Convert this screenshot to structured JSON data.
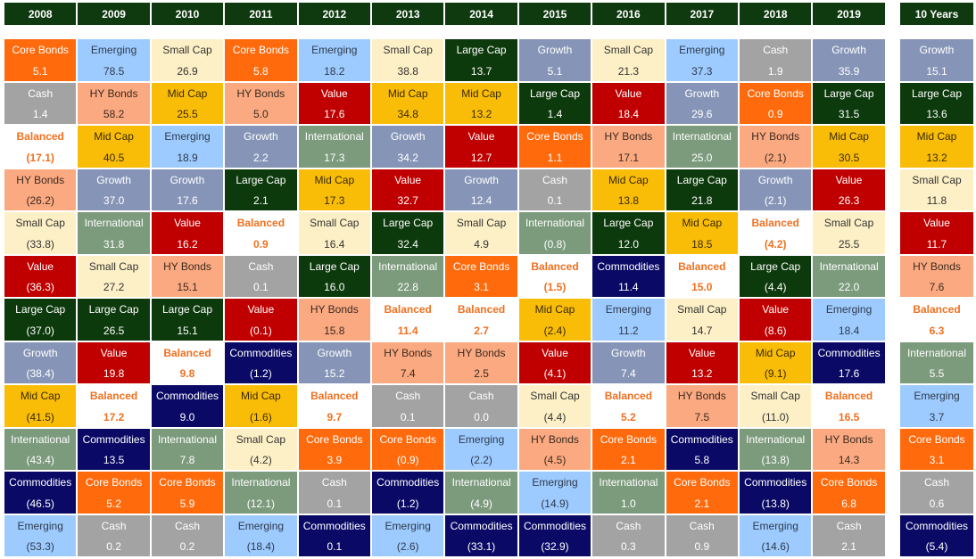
{
  "chart_data": {
    "type": "table",
    "columns": [
      "2008",
      "2009",
      "2010",
      "2011",
      "2012",
      "2013",
      "2014",
      "2015",
      "2016",
      "2017",
      "2018",
      "2019"
    ],
    "summary_column": "10 Years",
    "asset_colors": {
      "Core Bonds": {
        "bg": "#ff6a0d",
        "fg": "#ffffff"
      },
      "Emerging": {
        "bg": "#9dcbff",
        "fg": "#2f3a4a"
      },
      "Small Cap": {
        "bg": "#fdf0c6",
        "fg": "#333333"
      },
      "Large Cap": {
        "bg": "#0d3a0d",
        "fg": "#ffffff"
      },
      "Growth": {
        "bg": "#8695b7",
        "fg": "#ffffff"
      },
      "Cash": {
        "bg": "#a3a3a3",
        "fg": "#ffffff"
      },
      "HY Bonds": {
        "bg": "#fba980",
        "fg": "#3a2a20"
      },
      "Mid Cap": {
        "bg": "#f9bd08",
        "fg": "#3a2a00"
      },
      "Value": {
        "bg": "#c00000",
        "fg": "#ffffff"
      },
      "International": {
        "bg": "#7c9a7c",
        "fg": "#ffffff"
      },
      "Balanced": {
        "bg": "#ffffff",
        "fg": "#f07020"
      },
      "Commodities": {
        "bg": "#0a0a66",
        "fg": "#ffffff"
      }
    },
    "years": [
      {
        "year": "2008",
        "cells": [
          {
            "asset": "Core Bonds",
            "value": "5.1"
          },
          {
            "asset": "Cash",
            "value": "1.4"
          },
          {
            "asset": "Balanced",
            "value": "(17.1)"
          },
          {
            "asset": "HY Bonds",
            "value": "(26.2)"
          },
          {
            "asset": "Small Cap",
            "value": "(33.8)"
          },
          {
            "asset": "Value",
            "value": "(36.3)"
          },
          {
            "asset": "Large Cap",
            "value": "(37.0)"
          },
          {
            "asset": "Growth",
            "value": "(38.4)"
          },
          {
            "asset": "Mid Cap",
            "value": "(41.5)"
          },
          {
            "asset": "International",
            "value": "(43.4)"
          },
          {
            "asset": "Commodities",
            "value": "(46.5)"
          },
          {
            "asset": "Emerging",
            "value": "(53.3)"
          }
        ]
      },
      {
        "year": "2009",
        "cells": [
          {
            "asset": "Emerging",
            "value": "78.5"
          },
          {
            "asset": "HY Bonds",
            "value": "58.2"
          },
          {
            "asset": "Mid Cap",
            "value": "40.5"
          },
          {
            "asset": "Growth",
            "value": "37.0"
          },
          {
            "asset": "International",
            "value": "31.8"
          },
          {
            "asset": "Small Cap",
            "value": "27.2"
          },
          {
            "asset": "Large Cap",
            "value": "26.5"
          },
          {
            "asset": "Value",
            "value": "19.8"
          },
          {
            "asset": "Balanced",
            "value": "17.2"
          },
          {
            "asset": "Commodities",
            "value": "13.5"
          },
          {
            "asset": "Core Bonds",
            "value": "5.2"
          },
          {
            "asset": "Cash",
            "value": "0.2"
          }
        ]
      },
      {
        "year": "2010",
        "cells": [
          {
            "asset": "Small Cap",
            "value": "26.9"
          },
          {
            "asset": "Mid Cap",
            "value": "25.5"
          },
          {
            "asset": "Emerging",
            "value": "18.9"
          },
          {
            "asset": "Growth",
            "value": "17.6"
          },
          {
            "asset": "Value",
            "value": "16.2"
          },
          {
            "asset": "HY Bonds",
            "value": "15.1"
          },
          {
            "asset": "Large Cap",
            "value": "15.1"
          },
          {
            "asset": "Balanced",
            "value": "9.8"
          },
          {
            "asset": "Commodities",
            "value": "9.0"
          },
          {
            "asset": "International",
            "value": "7.8"
          },
          {
            "asset": "Core Bonds",
            "value": "5.9"
          },
          {
            "asset": "Cash",
            "value": "0.2"
          }
        ]
      },
      {
        "year": "2011",
        "cells": [
          {
            "asset": "Core Bonds",
            "value": "5.8"
          },
          {
            "asset": "HY Bonds",
            "value": "5.0"
          },
          {
            "asset": "Growth",
            "value": "2.2"
          },
          {
            "asset": "Large Cap",
            "value": "2.1"
          },
          {
            "asset": "Balanced",
            "value": "0.9"
          },
          {
            "asset": "Cash",
            "value": "0.1"
          },
          {
            "asset": "Value",
            "value": "(0.1)"
          },
          {
            "asset": "Commodities",
            "value": "(1.2)"
          },
          {
            "asset": "Mid Cap",
            "value": "(1.6)"
          },
          {
            "asset": "Small Cap",
            "value": "(4.2)"
          },
          {
            "asset": "International",
            "value": "(12.1)"
          },
          {
            "asset": "Emerging",
            "value": "(18.4)"
          }
        ]
      },
      {
        "year": "2012",
        "cells": [
          {
            "asset": "Emerging",
            "value": "18.2"
          },
          {
            "asset": "Value",
            "value": "17.6"
          },
          {
            "asset": "International",
            "value": "17.3"
          },
          {
            "asset": "Mid Cap",
            "value": "17.3"
          },
          {
            "asset": "Small Cap",
            "value": "16.4"
          },
          {
            "asset": "Large Cap",
            "value": "16.0"
          },
          {
            "asset": "HY Bonds",
            "value": "15.8"
          },
          {
            "asset": "Growth",
            "value": "15.2"
          },
          {
            "asset": "Balanced",
            "value": "9.7"
          },
          {
            "asset": "Core Bonds",
            "value": "3.9"
          },
          {
            "asset": "Cash",
            "value": "0.1"
          },
          {
            "asset": "Commodities",
            "value": "0.1"
          }
        ]
      },
      {
        "year": "2013",
        "cells": [
          {
            "asset": "Small Cap",
            "value": "38.8"
          },
          {
            "asset": "Mid Cap",
            "value": "34.8"
          },
          {
            "asset": "Growth",
            "value": "34.2"
          },
          {
            "asset": "Value",
            "value": "32.7"
          },
          {
            "asset": "Large Cap",
            "value": "32.4"
          },
          {
            "asset": "International",
            "value": "22.8"
          },
          {
            "asset": "Balanced",
            "value": "11.4"
          },
          {
            "asset": "HY Bonds",
            "value": "7.4"
          },
          {
            "asset": "Cash",
            "value": "0.1"
          },
          {
            "asset": "Core Bonds",
            "value": "(0.9)"
          },
          {
            "asset": "Commodities",
            "value": "(1.2)"
          },
          {
            "asset": "Emerging",
            "value": "(2.6)"
          }
        ]
      },
      {
        "year": "2014",
        "cells": [
          {
            "asset": "Large Cap",
            "value": "13.7"
          },
          {
            "asset": "Mid Cap",
            "value": "13.2"
          },
          {
            "asset": "Value",
            "value": "12.7"
          },
          {
            "asset": "Growth",
            "value": "12.4"
          },
          {
            "asset": "Small Cap",
            "value": "4.9"
          },
          {
            "asset": "Core Bonds",
            "value": "3.1"
          },
          {
            "asset": "Balanced",
            "value": "2.7"
          },
          {
            "asset": "HY Bonds",
            "value": "2.5"
          },
          {
            "asset": "Cash",
            "value": "0.0"
          },
          {
            "asset": "Emerging",
            "value": "(2.2)"
          },
          {
            "asset": "International",
            "value": "(4.9)"
          },
          {
            "asset": "Commodities",
            "value": "(33.1)"
          }
        ]
      },
      {
        "year": "2015",
        "cells": [
          {
            "asset": "Growth",
            "value": "5.1"
          },
          {
            "asset": "Large Cap",
            "value": "1.4"
          },
          {
            "asset": "Core Bonds",
            "value": "1.1"
          },
          {
            "asset": "Cash",
            "value": "0.1"
          },
          {
            "asset": "International",
            "value": "(0.8)"
          },
          {
            "asset": "Balanced",
            "value": "(1.5)"
          },
          {
            "asset": "Mid Cap",
            "value": "(2.4)"
          },
          {
            "asset": "Value",
            "value": "(4.1)"
          },
          {
            "asset": "Small Cap",
            "value": "(4.4)"
          },
          {
            "asset": "HY Bonds",
            "value": "(4.5)"
          },
          {
            "asset": "Emerging",
            "value": "(14.9)"
          },
          {
            "asset": "Commodities",
            "value": "(32.9)"
          }
        ]
      },
      {
        "year": "2016",
        "cells": [
          {
            "asset": "Small Cap",
            "value": "21.3"
          },
          {
            "asset": "Value",
            "value": "18.4"
          },
          {
            "asset": "HY Bonds",
            "value": "17.1"
          },
          {
            "asset": "Mid Cap",
            "value": "13.8"
          },
          {
            "asset": "Large Cap",
            "value": "12.0"
          },
          {
            "asset": "Commodities",
            "value": "11.4"
          },
          {
            "asset": "Emerging",
            "value": "11.2"
          },
          {
            "asset": "Growth",
            "value": "7.4"
          },
          {
            "asset": "Balanced",
            "value": "5.2"
          },
          {
            "asset": "Core Bonds",
            "value": "2.1"
          },
          {
            "asset": "International",
            "value": "1.0"
          },
          {
            "asset": "Cash",
            "value": "0.3"
          }
        ]
      },
      {
        "year": "2017",
        "cells": [
          {
            "asset": "Emerging",
            "value": "37.3"
          },
          {
            "asset": "Growth",
            "value": "29.6"
          },
          {
            "asset": "International",
            "value": "25.0"
          },
          {
            "asset": "Large Cap",
            "value": "21.8"
          },
          {
            "asset": "Mid Cap",
            "value": "18.5"
          },
          {
            "asset": "Balanced",
            "value": "15.0"
          },
          {
            "asset": "Small Cap",
            "value": "14.7"
          },
          {
            "asset": "Value",
            "value": "13.2"
          },
          {
            "asset": "HY Bonds",
            "value": "7.5"
          },
          {
            "asset": "Commodities",
            "value": "5.8"
          },
          {
            "asset": "Core Bonds",
            "value": "2.1"
          },
          {
            "asset": "Cash",
            "value": "0.9"
          }
        ]
      },
      {
        "year": "2018",
        "cells": [
          {
            "asset": "Cash",
            "value": "1.9"
          },
          {
            "asset": "Core Bonds",
            "value": "0.9"
          },
          {
            "asset": "HY Bonds",
            "value": "(2.1)"
          },
          {
            "asset": "Growth",
            "value": "(2.1)"
          },
          {
            "asset": "Balanced",
            "value": "(4.2)"
          },
          {
            "asset": "Large Cap",
            "value": "(4.4)"
          },
          {
            "asset": "Value",
            "value": "(8.6)"
          },
          {
            "asset": "Mid Cap",
            "value": "(9.1)"
          },
          {
            "asset": "Small Cap",
            "value": "(11.0)"
          },
          {
            "asset": "International",
            "value": "(13.8)"
          },
          {
            "asset": "Commodities",
            "value": "(13.8)"
          },
          {
            "asset": "Emerging",
            "value": "(14.6)"
          }
        ]
      },
      {
        "year": "2019",
        "cells": [
          {
            "asset": "Growth",
            "value": "35.9"
          },
          {
            "asset": "Large Cap",
            "value": "31.5"
          },
          {
            "asset": "Mid Cap",
            "value": "30.5"
          },
          {
            "asset": "Value",
            "value": "26.3"
          },
          {
            "asset": "Small Cap",
            "value": "25.5"
          },
          {
            "asset": "International",
            "value": "22.0"
          },
          {
            "asset": "Emerging",
            "value": "18.4"
          },
          {
            "asset": "Commodities",
            "value": "17.6"
          },
          {
            "asset": "Balanced",
            "value": "16.5"
          },
          {
            "asset": "HY Bonds",
            "value": "14.3"
          },
          {
            "asset": "Core Bonds",
            "value": "6.8"
          },
          {
            "asset": "Cash",
            "value": "2.1"
          }
        ]
      }
    ],
    "ten_years": [
      {
        "asset": "Growth",
        "value": "15.1"
      },
      {
        "asset": "Large Cap",
        "value": "13.6"
      },
      {
        "asset": "Mid Cap",
        "value": "13.2"
      },
      {
        "asset": "Small Cap",
        "value": "11.8"
      },
      {
        "asset": "Value",
        "value": "11.7"
      },
      {
        "asset": "HY Bonds",
        "value": "7.6"
      },
      {
        "asset": "Balanced",
        "value": "6.3"
      },
      {
        "asset": "International",
        "value": "5.5"
      },
      {
        "asset": "Emerging",
        "value": "3.7"
      },
      {
        "asset": "Core Bonds",
        "value": "3.1"
      },
      {
        "asset": "Cash",
        "value": "0.6"
      },
      {
        "asset": "Commodities",
        "value": "(5.4)"
      }
    ]
  }
}
